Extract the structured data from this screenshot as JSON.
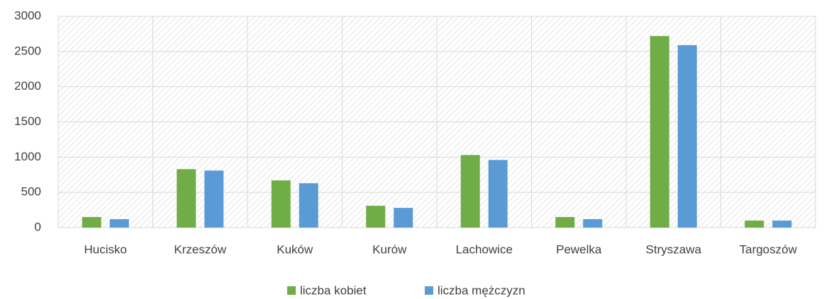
{
  "chart_data": {
    "type": "bar",
    "categories": [
      "Hucisko",
      "Krzeszów",
      "Kuków",
      "Kurów",
      "Lachowice",
      "Pewelka",
      "Stryszawa",
      "Targoszów"
    ],
    "series": [
      {
        "name": "liczba kobiet",
        "color": "#70ad47",
        "values": [
          150,
          830,
          670,
          310,
          1030,
          150,
          2720,
          100
        ]
      },
      {
        "name": "liczba mężczyzn",
        "color": "#5b9bd5",
        "values": [
          120,
          810,
          630,
          280,
          960,
          120,
          2590,
          100
        ]
      }
    ],
    "ylim": [
      0,
      3000
    ],
    "yticks": [
      0,
      500,
      1000,
      1500,
      2000,
      2500,
      3000
    ],
    "grid": true,
    "legend": "bottom"
  }
}
